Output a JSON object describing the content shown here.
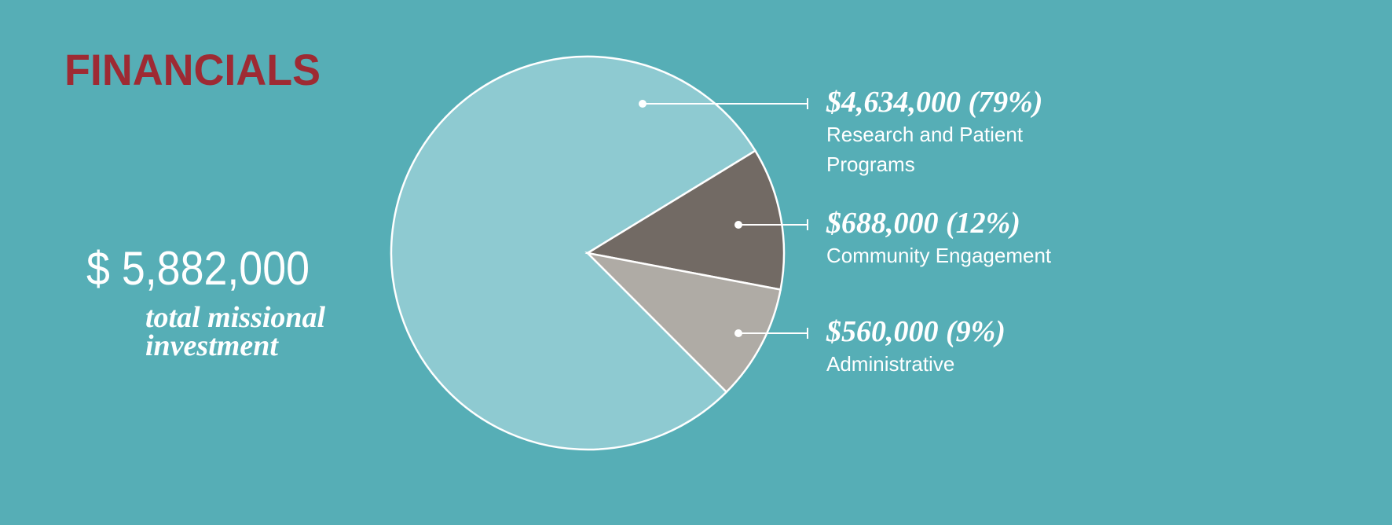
{
  "chart_data": {
    "type": "pie",
    "title": "FINANCIALS",
    "total": "$ 5,882,000",
    "subtitle": "total missional investment",
    "categories": [
      "Research and Patient Programs",
      "Community Engagement",
      "Administrative"
    ],
    "values": [
      4634000,
      688000,
      560000
    ],
    "value_labels": [
      "$4,634,000 (79%)",
      "$688,000 (12%)",
      "$560,000 (9%)"
    ],
    "colors": [
      "#8ecad1",
      "#726a64",
      "#afaba5"
    ]
  }
}
